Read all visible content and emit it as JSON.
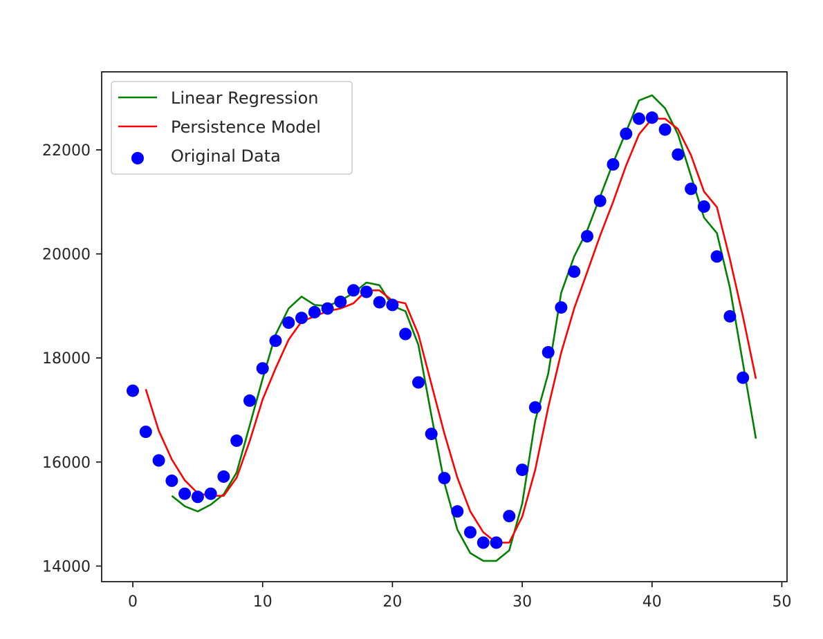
{
  "chart_data": {
    "type": "line",
    "title": "",
    "xlabel": "",
    "ylabel": "",
    "xlim": [
      -2.4,
      50.4
    ],
    "ylim": [
      13700,
      23500
    ],
    "xticks": [
      0,
      10,
      20,
      30,
      40,
      50
    ],
    "yticks": [
      14000,
      16000,
      18000,
      20000,
      22000
    ],
    "grid": false,
    "legend": {
      "position": "top-left"
    },
    "series": [
      {
        "name": "Linear Regression",
        "kind": "line",
        "color": "#008000",
        "x": [
          3,
          4,
          5,
          6,
          7,
          8,
          9,
          10,
          11,
          12,
          13,
          14,
          15,
          16,
          17,
          18,
          19,
          20,
          21,
          22,
          23,
          24,
          25,
          26,
          27,
          28,
          29,
          30,
          31,
          32,
          33,
          34,
          35,
          36,
          37,
          38,
          39,
          40,
          41,
          42,
          43,
          44,
          45,
          46,
          47,
          48
        ],
        "y": [
          15350,
          15150,
          15050,
          15180,
          15380,
          15800,
          16700,
          17600,
          18450,
          18950,
          19180,
          19020,
          19000,
          19100,
          19250,
          19450,
          19400,
          19000,
          18900,
          18250,
          16900,
          15600,
          14700,
          14250,
          14100,
          14100,
          14300,
          15200,
          16800,
          17700,
          19250,
          19950,
          20450,
          21100,
          21750,
          22350,
          22950,
          23050,
          22800,
          22300,
          21500,
          20700,
          20400,
          19350,
          17900,
          16450
        ]
      },
      {
        "name": "Persistence Model",
        "kind": "line",
        "color": "#ff0000",
        "x": [
          1,
          2,
          3,
          4,
          5,
          6,
          7,
          8,
          9,
          10,
          11,
          12,
          13,
          14,
          15,
          16,
          17,
          18,
          19,
          20,
          21,
          22,
          23,
          24,
          25,
          26,
          27,
          28,
          29,
          30,
          31,
          32,
          33,
          34,
          35,
          36,
          37,
          38,
          39,
          40,
          41,
          42,
          43,
          44,
          45,
          46,
          47,
          48
        ],
        "y": [
          17400,
          16600,
          16050,
          15650,
          15400,
          15350,
          15350,
          15700,
          16400,
          17200,
          17800,
          18350,
          18700,
          18800,
          18900,
          18950,
          19050,
          19300,
          19300,
          19100,
          19050,
          18450,
          17500,
          16550,
          15700,
          15050,
          14650,
          14450,
          14450,
          14950,
          15850,
          17050,
          18100,
          18950,
          19650,
          20350,
          21000,
          21700,
          22300,
          22600,
          22600,
          22400,
          21900,
          21200,
          20900,
          19900,
          18800,
          17600
        ]
      },
      {
        "name": "Original Data",
        "kind": "scatter",
        "color": "#0000ff",
        "x": [
          0,
          1,
          2,
          3,
          4,
          5,
          6,
          7,
          8,
          9,
          10,
          11,
          12,
          13,
          14,
          15,
          16,
          17,
          18,
          19,
          20,
          21,
          22,
          23,
          24,
          25,
          26,
          27,
          28,
          29,
          30,
          31,
          32,
          33,
          34,
          35,
          36,
          37,
          38,
          39,
          40,
          41,
          42,
          43,
          44,
          45,
          46,
          47
        ],
        "y": [
          17370,
          16580,
          16030,
          15640,
          15390,
          15330,
          15390,
          15720,
          16410,
          17180,
          17800,
          18330,
          18680,
          18770,
          18880,
          18950,
          19080,
          19300,
          19270,
          19070,
          19020,
          18460,
          17530,
          16540,
          15690,
          15050,
          14650,
          14450,
          14450,
          14960,
          15850,
          17050,
          18110,
          18970,
          19660,
          20340,
          21020,
          21720,
          22310,
          22600,
          22620,
          22390,
          21910,
          21250,
          20910,
          19950,
          18800,
          17620
        ]
      }
    ]
  }
}
